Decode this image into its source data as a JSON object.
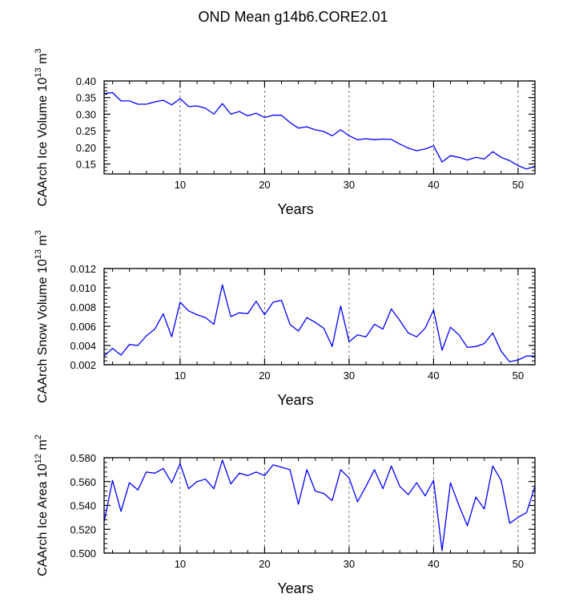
{
  "title": "OND Mean g14b6.CORE2.01",
  "colors": {
    "line": "#0000ff",
    "axis": "#000000",
    "grid": "#555555"
  },
  "chart_data": [
    {
      "type": "line",
      "xlabel": "Years",
      "ylabel": "CAArch Ice Volume 10",
      "ylabel_exp": "13",
      "ylabel_unit": " m",
      "ylabel_unit_exp": "3",
      "xlim": [
        1,
        52
      ],
      "ylim": [
        0.12,
        0.4
      ],
      "xticks": [
        10,
        20,
        30,
        40,
        50
      ],
      "yticks": [
        0.15,
        0.2,
        0.25,
        0.3,
        0.35,
        0.4
      ],
      "ytick_labels": [
        "0.15",
        "0.20",
        "0.25",
        "0.30",
        "0.35",
        "0.40"
      ],
      "grid_x": [
        10,
        20,
        30,
        40,
        50
      ],
      "x": [
        1,
        2,
        3,
        4,
        5,
        6,
        7,
        8,
        9,
        10,
        11,
        12,
        13,
        14,
        15,
        16,
        17,
        18,
        19,
        20,
        21,
        22,
        23,
        24,
        25,
        26,
        27,
        28,
        29,
        30,
        31,
        32,
        33,
        34,
        35,
        36,
        37,
        38,
        39,
        40,
        41,
        42,
        43,
        44,
        45,
        46,
        47,
        48,
        49,
        50,
        51,
        52
      ],
      "values": [
        0.362,
        0.365,
        0.34,
        0.34,
        0.33,
        0.33,
        0.337,
        0.342,
        0.328,
        0.347,
        0.323,
        0.325,
        0.318,
        0.3,
        0.332,
        0.3,
        0.308,
        0.295,
        0.303,
        0.29,
        0.297,
        0.297,
        0.275,
        0.258,
        0.262,
        0.253,
        0.248,
        0.235,
        0.253,
        0.235,
        0.223,
        0.226,
        0.223,
        0.225,
        0.224,
        0.21,
        0.198,
        0.19,
        0.195,
        0.205,
        0.156,
        0.175,
        0.17,
        0.162,
        0.17,
        0.165,
        0.187,
        0.17,
        0.16,
        0.145,
        0.135,
        0.143
      ]
    },
    {
      "type": "line",
      "xlabel": "Years",
      "ylabel": "CAArch Snow Volume 10",
      "ylabel_exp": "13",
      "ylabel_unit": " m",
      "ylabel_unit_exp": "3",
      "xlim": [
        1,
        52
      ],
      "ylim": [
        0.002,
        0.012
      ],
      "xticks": [
        10,
        20,
        30,
        40,
        50
      ],
      "yticks": [
        0.002,
        0.004,
        0.006,
        0.008,
        0.01,
        0.012
      ],
      "ytick_labels": [
        "0.002",
        "0.004",
        "0.006",
        "0.008",
        "0.010",
        "0.012"
      ],
      "grid_x": [
        10,
        20,
        30,
        40,
        50
      ],
      "x": [
        1,
        2,
        3,
        4,
        5,
        6,
        7,
        8,
        9,
        10,
        11,
        12,
        13,
        14,
        15,
        16,
        17,
        18,
        19,
        20,
        21,
        22,
        23,
        24,
        25,
        26,
        27,
        28,
        29,
        30,
        31,
        32,
        33,
        34,
        35,
        36,
        37,
        38,
        39,
        40,
        41,
        42,
        43,
        44,
        45,
        46,
        47,
        48,
        49,
        50,
        51,
        52
      ],
      "values": [
        0.0029,
        0.0037,
        0.003,
        0.0041,
        0.004,
        0.005,
        0.0057,
        0.0073,
        0.0049,
        0.0085,
        0.0076,
        0.0072,
        0.0069,
        0.0062,
        0.0103,
        0.007,
        0.0074,
        0.0073,
        0.0086,
        0.0072,
        0.0085,
        0.0087,
        0.0062,
        0.0055,
        0.0069,
        0.0064,
        0.0058,
        0.0039,
        0.0081,
        0.0044,
        0.0051,
        0.0049,
        0.0062,
        0.0057,
        0.0078,
        0.0066,
        0.0053,
        0.0049,
        0.0058,
        0.0077,
        0.0035,
        0.0059,
        0.0051,
        0.0038,
        0.0039,
        0.0042,
        0.0053,
        0.0034,
        0.0023,
        0.0025,
        0.0029,
        0.0029
      ]
    },
    {
      "type": "line",
      "xlabel": "Years",
      "ylabel": "CAArch Ice Area 10",
      "ylabel_exp": "12",
      "ylabel_unit": " m",
      "ylabel_unit_exp": "2",
      "xlim": [
        1,
        52
      ],
      "ylim": [
        0.5,
        0.58
      ],
      "xticks": [
        10,
        20,
        30,
        40,
        50
      ],
      "yticks": [
        0.5,
        0.52,
        0.54,
        0.56,
        0.58
      ],
      "ytick_labels": [
        "0.500",
        "0.520",
        "0.540",
        "0.560",
        "0.580"
      ],
      "grid_x": [
        10,
        20,
        30,
        40,
        50
      ],
      "x": [
        1,
        2,
        3,
        4,
        5,
        6,
        7,
        8,
        9,
        10,
        11,
        12,
        13,
        14,
        15,
        16,
        17,
        18,
        19,
        20,
        21,
        22,
        23,
        24,
        25,
        26,
        27,
        28,
        29,
        30,
        31,
        32,
        33,
        34,
        35,
        36,
        37,
        38,
        39,
        40,
        41,
        42,
        43,
        44,
        45,
        46,
        47,
        48,
        49,
        50,
        51,
        52
      ],
      "values": [
        0.526,
        0.561,
        0.535,
        0.559,
        0.553,
        0.568,
        0.567,
        0.571,
        0.559,
        0.575,
        0.554,
        0.56,
        0.562,
        0.554,
        0.578,
        0.558,
        0.567,
        0.565,
        0.568,
        0.565,
        0.574,
        0.572,
        0.57,
        0.541,
        0.57,
        0.552,
        0.55,
        0.544,
        0.57,
        0.563,
        0.543,
        0.556,
        0.57,
        0.554,
        0.573,
        0.556,
        0.549,
        0.559,
        0.548,
        0.561,
        0.502,
        0.559,
        0.54,
        0.523,
        0.547,
        0.537,
        0.573,
        0.561,
        0.525,
        0.53,
        0.534,
        0.556
      ]
    }
  ]
}
